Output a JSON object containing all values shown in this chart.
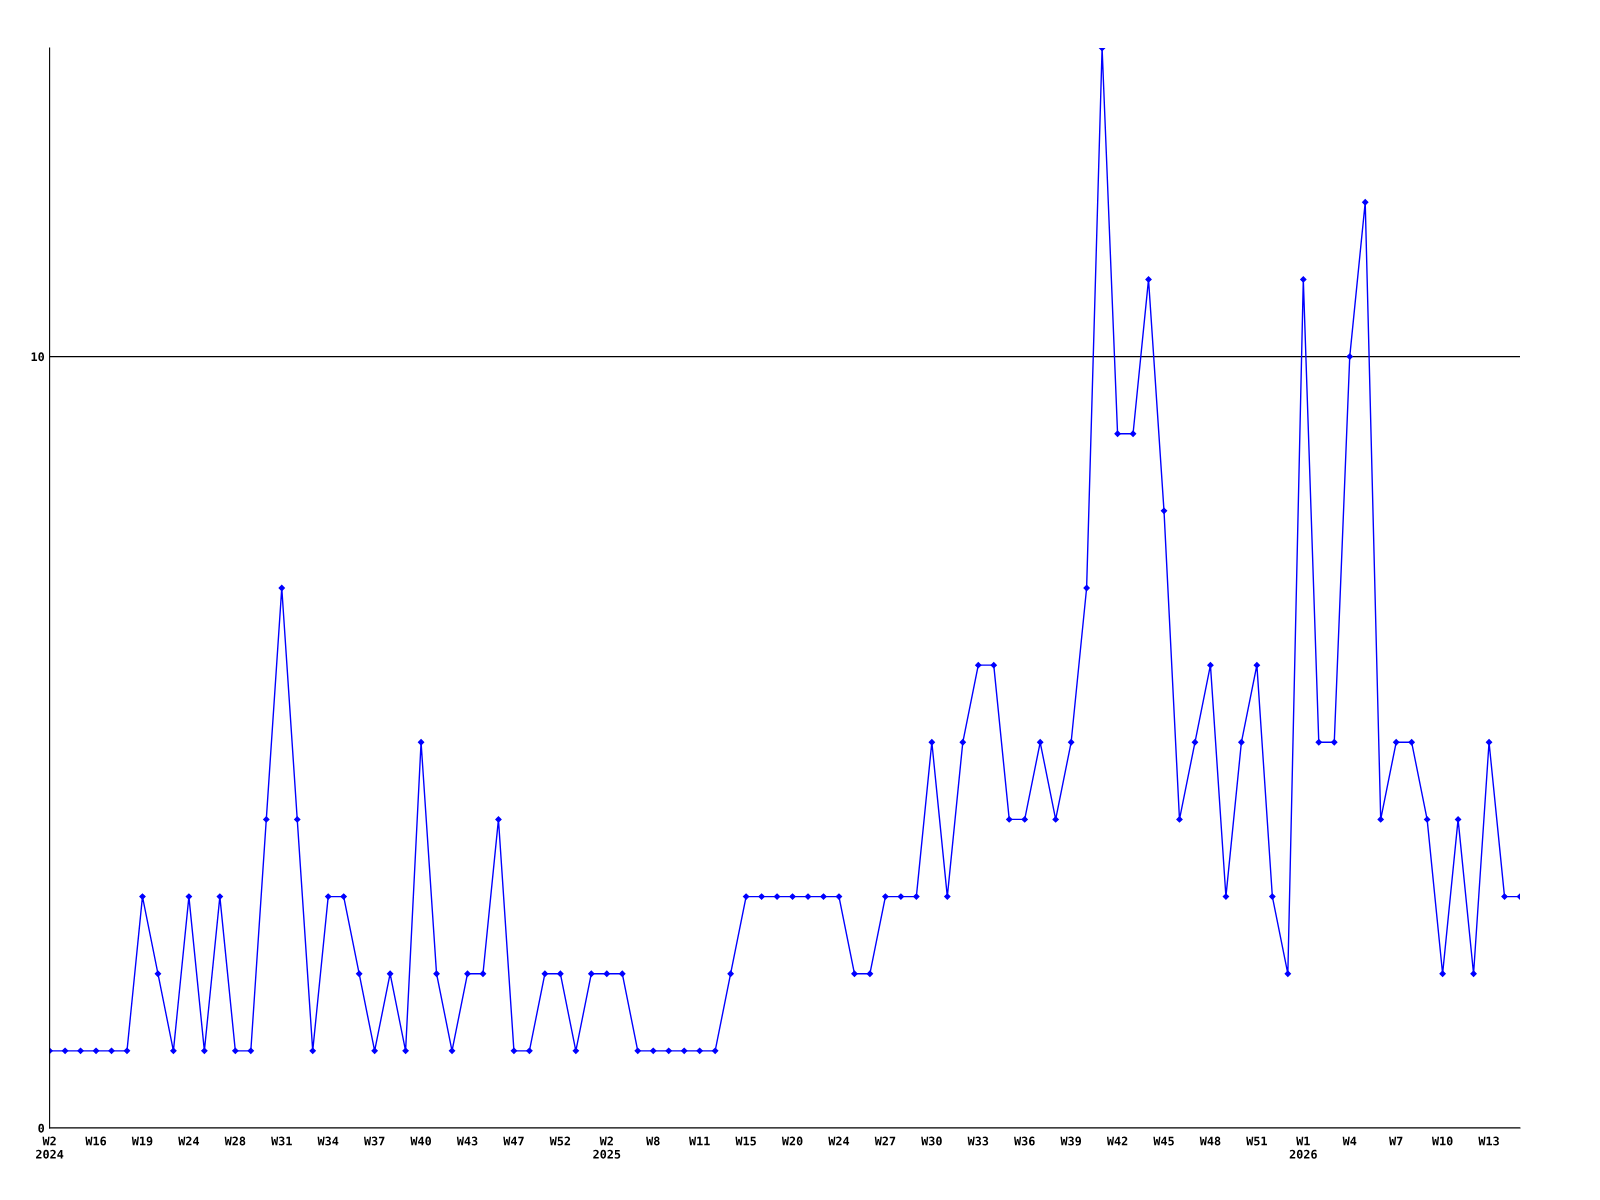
{
  "chart_data": {
    "type": "line",
    "categories": [
      "W2\n2024",
      null,
      null,
      "W16",
      null,
      null,
      "W19",
      null,
      null,
      "W24",
      null,
      null,
      "W28",
      null,
      null,
      "W31",
      null,
      null,
      "W34",
      null,
      null,
      "W37",
      null,
      null,
      "W40",
      null,
      null,
      "W43",
      null,
      null,
      "W47",
      null,
      null,
      "W52",
      null,
      null,
      "W2\n2025",
      null,
      null,
      "W8",
      null,
      null,
      "W11",
      null,
      null,
      "W15",
      null,
      null,
      "W20",
      null,
      null,
      "W24",
      null,
      null,
      "W27",
      null,
      null,
      "W30",
      null,
      null,
      "W33",
      null,
      null,
      "W36",
      null,
      null,
      "W39",
      null,
      null,
      "W42",
      null,
      null,
      "W45",
      null,
      null,
      "W48",
      null,
      null,
      "W51",
      null,
      null,
      "W1\n2026",
      null,
      null,
      "W4",
      null,
      null,
      "W7",
      null,
      null,
      "W10",
      null,
      null,
      "W13",
      null,
      null
    ],
    "series": [
      {
        "color": "#0000ff",
        "values": [
          1,
          1,
          1,
          1,
          1,
          1,
          3,
          2,
          1,
          3,
          1,
          3,
          1,
          1,
          4,
          7,
          4,
          1,
          3,
          3,
          2,
          1,
          2,
          1,
          5,
          2,
          1,
          2,
          2,
          4,
          1,
          1,
          2,
          2,
          1,
          2,
          2,
          2,
          1,
          1,
          1,
          1,
          1,
          1,
          2,
          3,
          3,
          3,
          3,
          3,
          3,
          3,
          2,
          2,
          3,
          3,
          3,
          5,
          3,
          5,
          6,
          6,
          4,
          4,
          5,
          4,
          5,
          7,
          14,
          9,
          9,
          11,
          8,
          4,
          5,
          6,
          3,
          5,
          6,
          3,
          2,
          11,
          5,
          5,
          10,
          12,
          4,
          5,
          5,
          4,
          2,
          4,
          2,
          5,
          3,
          3
        ]
      }
    ],
    "ylim": [
      0,
      14
    ],
    "yticks": [
      0,
      10
    ],
    "grid": "y",
    "marker": "diamond",
    "line_style": "solid"
  }
}
